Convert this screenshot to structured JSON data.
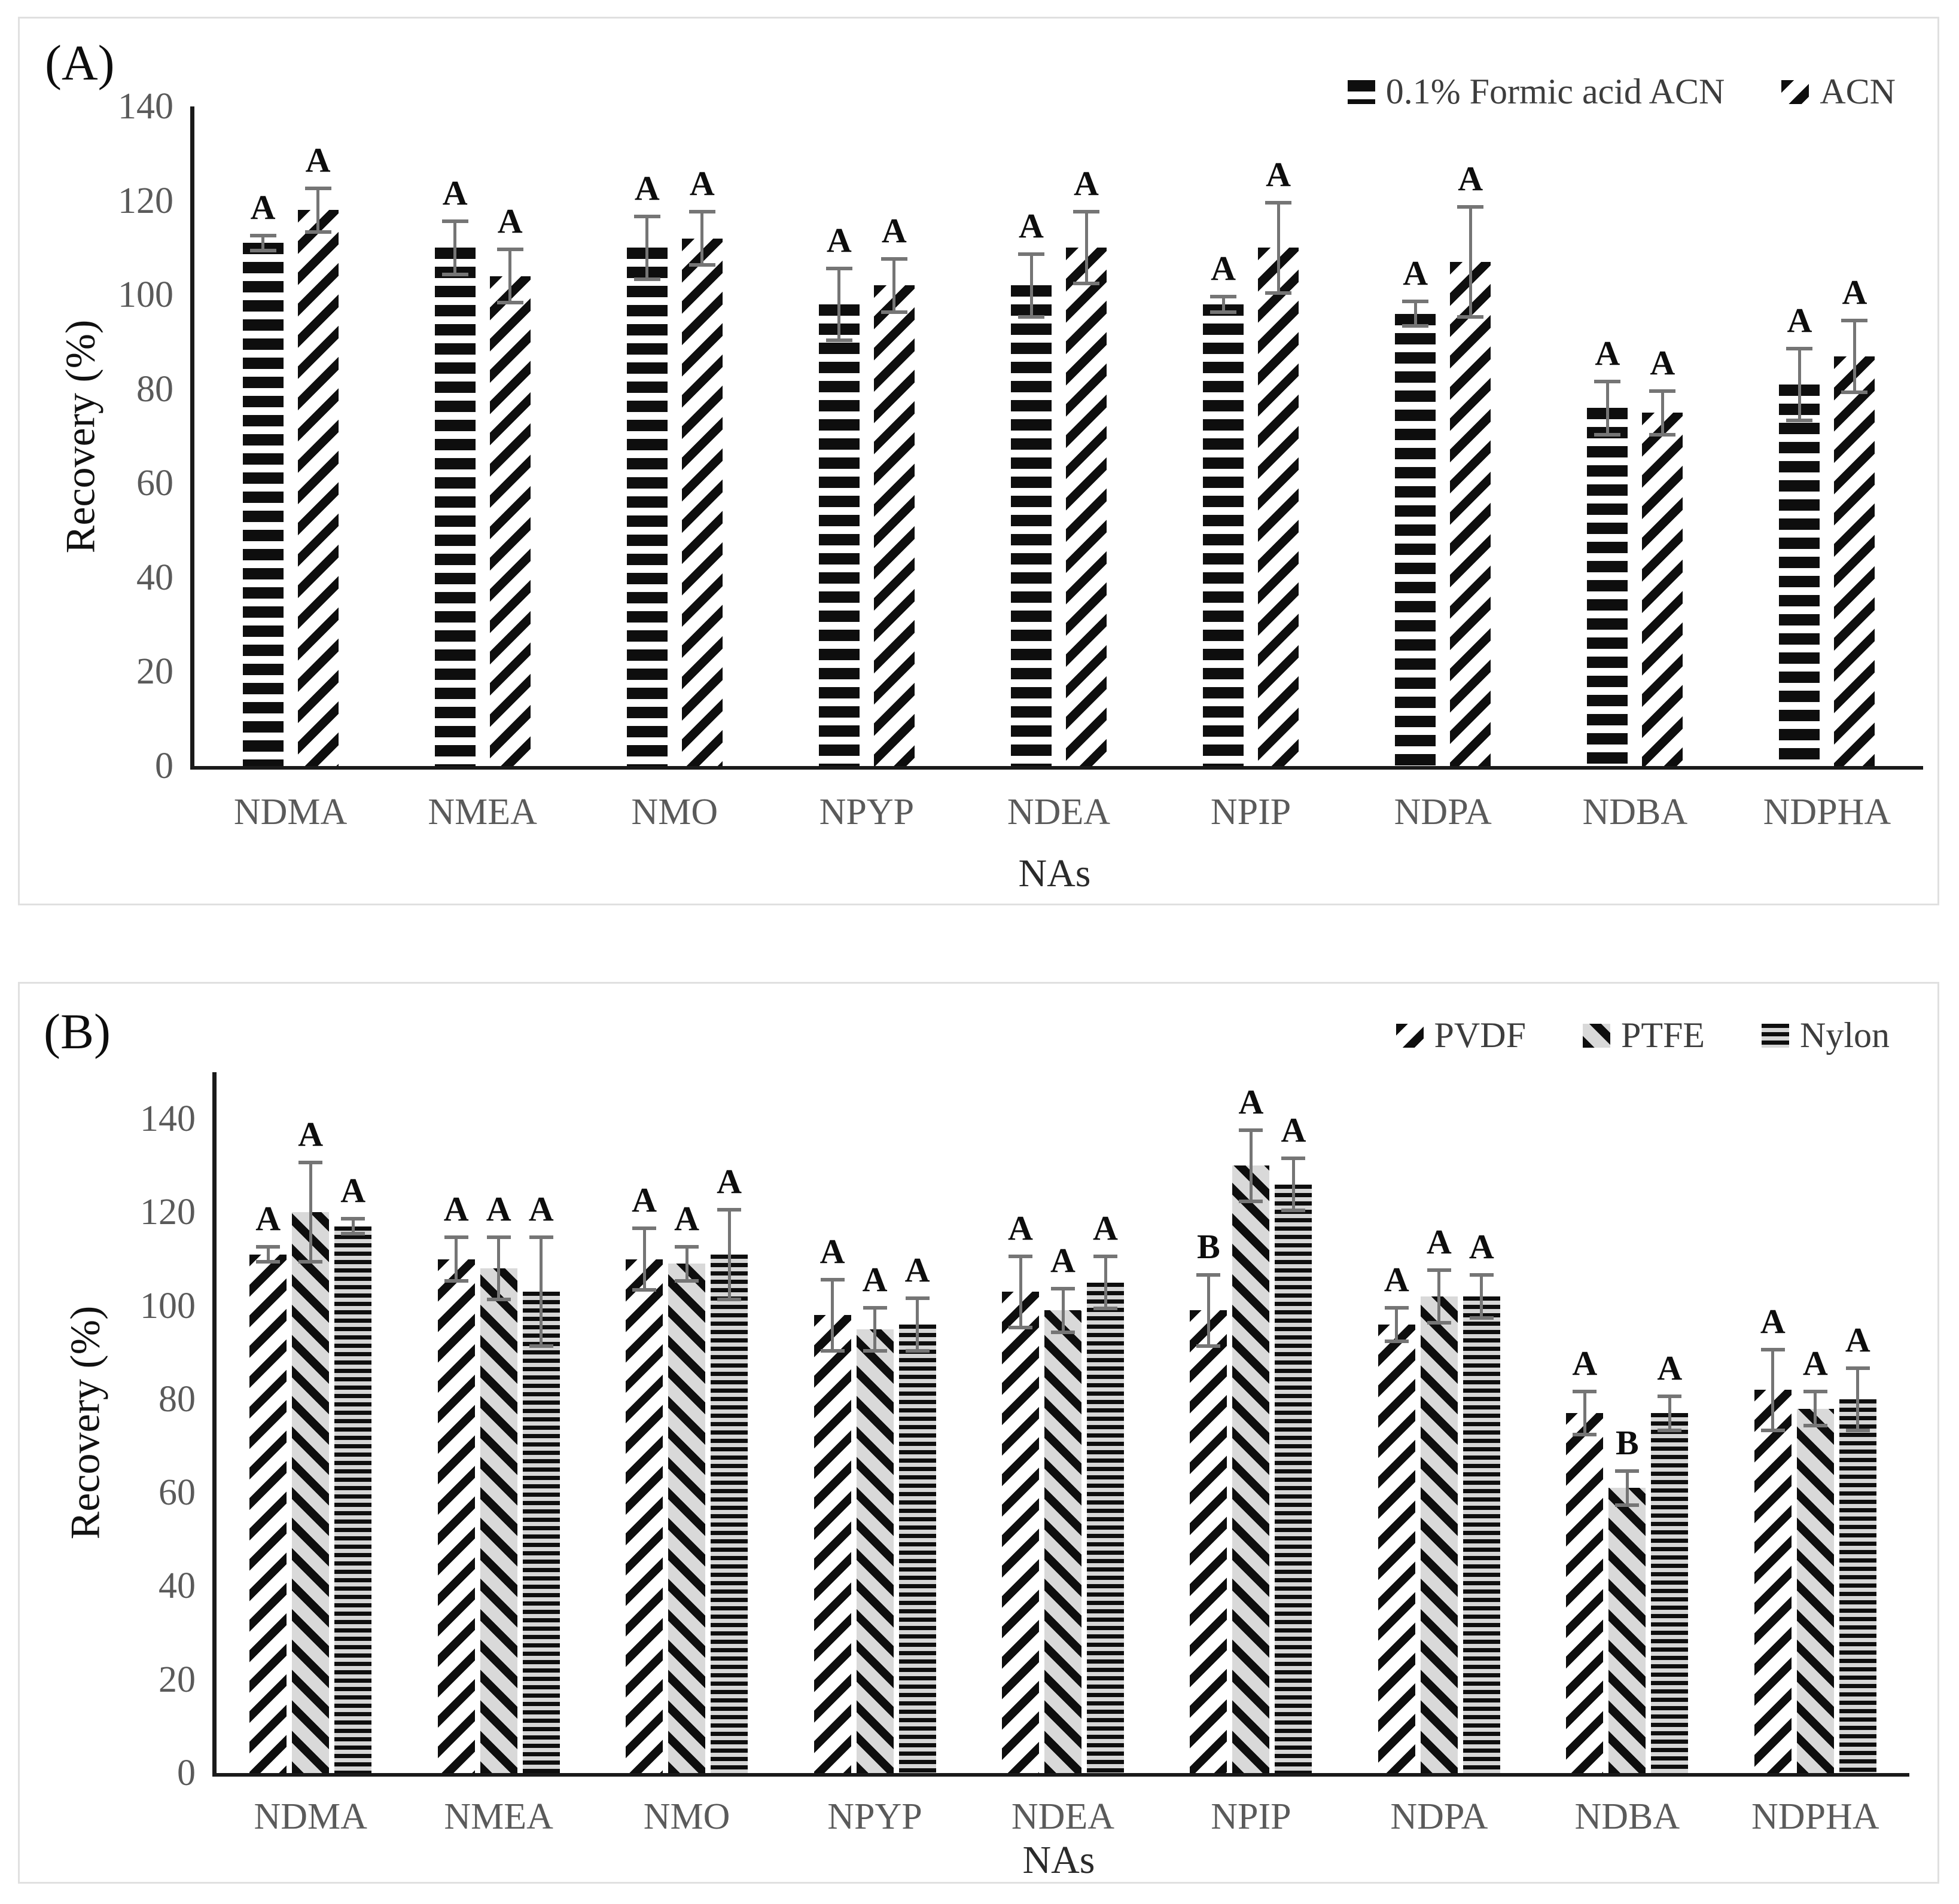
{
  "colors": {
    "bar_black": "#0e0e0e",
    "pattern_bg_gray": "#d9d9d9",
    "error_bar": "#757575",
    "axis_line": "#1a1a1a",
    "tick_text": "#5a5a5a",
    "category_text": "#5a5a5a",
    "legend_text": "#3d3d3d",
    "letter_text": "#0d0d0d",
    "panel_border": "#e0e0e0"
  },
  "chart_data": [
    {
      "type": "bar",
      "panel_label": "(A)",
      "title": "",
      "xlabel": "NAs",
      "ylabel": "Recovery (%)",
      "ylim": [
        0,
        140
      ],
      "yticks": [
        0,
        20,
        40,
        60,
        80,
        100,
        120,
        140
      ],
      "grid": false,
      "legend_position": "top-right",
      "categories": [
        "NDMA",
        "NMEA",
        "NMO",
        "NPYP",
        "NDEA",
        "NPIP",
        "NDPA",
        "NDBA",
        "NDPHA"
      ],
      "series": [
        {
          "name": "0.1% Formic acid ACN",
          "pattern": "hstripe-bold",
          "values": [
            111,
            110,
            110,
            98,
            102,
            98,
            96,
            76,
            81
          ],
          "errors": [
            2,
            6,
            7,
            8,
            7,
            2,
            3,
            6,
            8
          ],
          "letters": [
            "A",
            "A",
            "A",
            "A",
            "A",
            "A",
            "A",
            "A",
            "A"
          ]
        },
        {
          "name": "ACN",
          "pattern": "diag-up",
          "values": [
            118,
            104,
            112,
            102,
            110,
            110,
            107,
            75,
            87
          ],
          "errors": [
            5,
            6,
            6,
            6,
            8,
            10,
            12,
            5,
            8
          ],
          "letters": [
            "A",
            "A",
            "A",
            "A",
            "A",
            "A",
            "A",
            "A",
            "A"
          ]
        }
      ]
    },
    {
      "type": "bar",
      "panel_label": "(B)",
      "title": "",
      "xlabel": "NAs",
      "ylabel": "Recovery (%)",
      "ylim": [
        0,
        150
      ],
      "yticks": [
        0,
        20,
        40,
        60,
        80,
        100,
        120,
        140
      ],
      "grid": false,
      "legend_position": "top-right",
      "categories": [
        "NDMA",
        "NMEA",
        "NMO",
        "NPYP",
        "NDEA",
        "NPIP",
        "NDPA",
        "NDBA",
        "NDPHA"
      ],
      "series": [
        {
          "name": "PVDF",
          "pattern": "diag-up-b",
          "values": [
            111,
            110,
            110,
            98,
            103,
            99,
            96,
            77,
            82
          ],
          "errors": [
            2,
            5,
            7,
            8,
            8,
            8,
            4,
            5,
            9
          ],
          "letters": [
            "A",
            "A",
            "A",
            "A",
            "A",
            "B",
            "A",
            "A",
            "A"
          ]
        },
        {
          "name": "PTFE",
          "pattern": "diag-down-gray",
          "values": [
            120,
            108,
            109,
            95,
            99,
            130,
            102,
            61,
            78
          ],
          "errors": [
            11,
            7,
            4,
            5,
            5,
            8,
            6,
            4,
            4
          ],
          "letters": [
            "A",
            "A",
            "A",
            "A",
            "A",
            "A",
            "A",
            "B",
            "A"
          ]
        },
        {
          "name": "Nylon",
          "pattern": "hstripe-fine-gray",
          "values": [
            117,
            103,
            111,
            96,
            105,
            126,
            102,
            77,
            80
          ],
          "errors": [
            2,
            12,
            10,
            6,
            6,
            6,
            5,
            4,
            7
          ],
          "letters": [
            "A",
            "A",
            "A",
            "A",
            "A",
            "A",
            "A",
            "A",
            "A"
          ]
        }
      ]
    }
  ]
}
